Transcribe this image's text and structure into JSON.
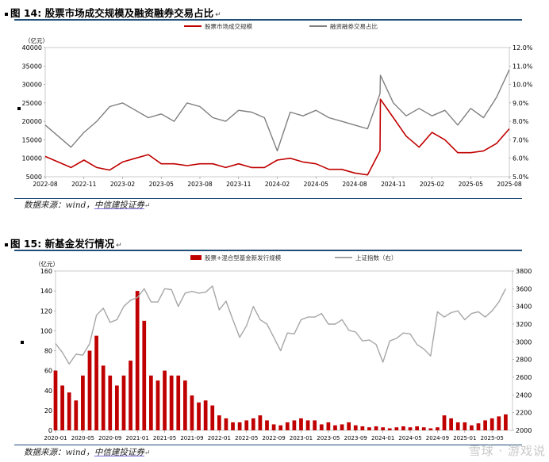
{
  "fig1": {
    "caption": "图 14: 股票市场成交规模及融资融券交易占比",
    "source_prefix": "数据来源：wind，",
    "source_link": "中信建投证券"
  },
  "fig2": {
    "caption": "图 15: 新基金发行情况",
    "source_prefix": "数据来源：wind，",
    "source_link": "中信建投证券"
  },
  "watermark": "雪球 · 游戏说",
  "colors": {
    "red": "#c00000",
    "gray": "#7f7f7f",
    "rule": "#1f4e79"
  },
  "chart_data": [
    {
      "type": "line",
      "y_unit_label": "（亿元）",
      "ylim": [
        5000,
        40000
      ],
      "y2lim": [
        0.05,
        0.12
      ],
      "y_ticks": [
        "40000",
        "35000",
        "30000",
        "25000",
        "20000",
        "15000",
        "10000",
        "5000"
      ],
      "y2_ticks": [
        "12.0%",
        "11.0%",
        "10.0%",
        "9.0%",
        "8.0%",
        "7.0%",
        "6.0%",
        "5.0%"
      ],
      "x_ticks": [
        "2022-08",
        "2022-11",
        "2023-02",
        "2023-05",
        "2023-08",
        "2023-11",
        "2024-02",
        "2024-05",
        "2024-08",
        "2024-11",
        "2025-02",
        "2025-05",
        "2025-08"
      ],
      "legend": [
        "股票市场成交规模",
        "融资融券交易占比"
      ],
      "series": [
        {
          "name": "股票市场成交规模",
          "axis": "left",
          "color": "#c00000",
          "x": [
            "2022-08",
            "2022-09",
            "2022-10",
            "2022-11",
            "2022-12",
            "2023-01",
            "2023-02",
            "2023-03",
            "2023-04",
            "2023-05",
            "2023-06",
            "2023-07",
            "2023-08",
            "2023-09",
            "2023-10",
            "2023-11",
            "2023-12",
            "2024-01",
            "2024-02",
            "2024-03",
            "2024-04",
            "2024-05",
            "2024-06",
            "2024-07",
            "2024-08",
            "2024-09",
            "2024-09-30",
            "2024-10",
            "2024-11",
            "2024-12",
            "2025-01",
            "2025-02",
            "2025-03",
            "2025-04",
            "2025-05",
            "2025-06",
            "2025-07",
            "2025-08"
          ],
          "values": [
            10500,
            9000,
            7500,
            9500,
            7500,
            6800,
            9000,
            10000,
            11000,
            8500,
            8500,
            8000,
            8500,
            8500,
            7500,
            8500,
            7500,
            7500,
            9500,
            10000,
            9000,
            8500,
            7000,
            7000,
            6000,
            5500,
            12000,
            26000,
            21000,
            16000,
            13000,
            17000,
            15000,
            11500,
            11500,
            12000,
            14000,
            18000
          ]
        },
        {
          "name": "融资融券交易占比",
          "axis": "right",
          "color": "#7f7f7f",
          "x": [
            "2022-08",
            "2022-09",
            "2022-10",
            "2022-11",
            "2022-12",
            "2023-01",
            "2023-02",
            "2023-03",
            "2023-04",
            "2023-05",
            "2023-06",
            "2023-07",
            "2023-08",
            "2023-09",
            "2023-10",
            "2023-11",
            "2023-12",
            "2024-01",
            "2024-02",
            "2024-03",
            "2024-04",
            "2024-05",
            "2024-06",
            "2024-07",
            "2024-08",
            "2024-09",
            "2024-09-30",
            "2024-10",
            "2024-11",
            "2024-12",
            "2025-01",
            "2025-02",
            "2025-03",
            "2025-04",
            "2025-05",
            "2025-06",
            "2025-07",
            "2025-08"
          ],
          "values": [
            0.078,
            0.072,
            0.066,
            0.074,
            0.08,
            0.088,
            0.09,
            0.086,
            0.082,
            0.084,
            0.08,
            0.09,
            0.088,
            0.082,
            0.08,
            0.086,
            0.085,
            0.082,
            0.064,
            0.085,
            0.083,
            0.086,
            0.082,
            0.08,
            0.078,
            0.076,
            0.095,
            0.105,
            0.09,
            0.083,
            0.087,
            0.083,
            0.086,
            0.078,
            0.087,
            0.082,
            0.093,
            0.108
          ]
        }
      ]
    },
    {
      "type": "bar",
      "y_unit_label": "（亿元）",
      "ylim": [
        0,
        160
      ],
      "y2lim": [
        2000,
        3800
      ],
      "y_ticks": [
        "160",
        "140",
        "120",
        "100",
        "80",
        "60",
        "40",
        "20",
        "0"
      ],
      "y2_ticks": [
        "3800",
        "3600",
        "3400",
        "3200",
        "3000",
        "2800",
        "2600",
        "2400",
        "2200",
        "2000"
      ],
      "x_ticks": [
        "2020-01",
        "2020-05",
        "2020-09",
        "2021-01",
        "2021-05",
        "2021-09",
        "2022-01",
        "2022-05",
        "2022-09",
        "2023-01",
        "2023-05",
        "2023-09",
        "2024-01",
        "2024-05",
        "2024-09",
        "2025-01",
        "2025-05"
      ],
      "legend": [
        "股票+混合型基金新发行规模",
        "上证指数（右）"
      ],
      "series": [
        {
          "name": "股票+混合型基金新发行规模",
          "axis": "left",
          "color": "#c00000",
          "x": [
            "2020-01",
            "2020-02",
            "2020-03",
            "2020-04",
            "2020-05",
            "2020-06",
            "2020-07",
            "2020-08",
            "2020-09",
            "2020-10",
            "2020-11",
            "2020-12",
            "2021-01",
            "2021-02",
            "2021-03",
            "2021-04",
            "2021-05",
            "2021-06",
            "2021-07",
            "2021-08",
            "2021-09",
            "2021-10",
            "2021-11",
            "2021-12",
            "2022-01",
            "2022-02",
            "2022-03",
            "2022-04",
            "2022-05",
            "2022-06",
            "2022-07",
            "2022-08",
            "2022-09",
            "2022-10",
            "2022-11",
            "2022-12",
            "2023-01",
            "2023-02",
            "2023-03",
            "2023-04",
            "2023-05",
            "2023-06",
            "2023-07",
            "2023-08",
            "2023-09",
            "2023-10",
            "2023-11",
            "2023-12",
            "2024-01",
            "2024-02",
            "2024-03",
            "2024-04",
            "2024-05",
            "2024-06",
            "2024-07",
            "2024-08",
            "2024-09",
            "2024-10",
            "2024-11",
            "2024-12",
            "2025-01",
            "2025-02",
            "2025-03",
            "2025-04",
            "2025-05",
            "2025-06",
            "2025-07"
          ],
          "values": [
            60,
            45,
            38,
            30,
            55,
            80,
            95,
            65,
            55,
            45,
            55,
            70,
            140,
            110,
            55,
            50,
            60,
            55,
            55,
            50,
            35,
            28,
            30,
            25,
            15,
            12,
            8,
            8,
            10,
            12,
            15,
            10,
            6,
            5,
            8,
            10,
            12,
            10,
            10,
            6,
            8,
            5,
            6,
            8,
            5,
            4,
            3,
            4,
            3,
            2,
            3,
            4,
            3,
            4,
            3,
            2,
            3,
            15,
            12,
            8,
            8,
            5,
            7,
            10,
            12,
            14,
            16
          ]
        },
        {
          "name": "上证指数（右）",
          "axis": "right",
          "color": "#a6a6a6",
          "x": [
            "2020-01",
            "2020-02",
            "2020-03",
            "2020-04",
            "2020-05",
            "2020-06",
            "2020-07",
            "2020-08",
            "2020-09",
            "2020-10",
            "2020-11",
            "2020-12",
            "2021-01",
            "2021-02",
            "2021-03",
            "2021-04",
            "2021-05",
            "2021-06",
            "2021-07",
            "2021-08",
            "2021-09",
            "2021-10",
            "2021-11",
            "2021-12",
            "2022-01",
            "2022-02",
            "2022-03",
            "2022-04",
            "2022-05",
            "2022-06",
            "2022-07",
            "2022-08",
            "2022-09",
            "2022-10",
            "2022-11",
            "2022-12",
            "2023-01",
            "2023-02",
            "2023-03",
            "2023-04",
            "2023-05",
            "2023-06",
            "2023-07",
            "2023-08",
            "2023-09",
            "2023-10",
            "2023-11",
            "2023-12",
            "2024-01",
            "2024-02",
            "2024-03",
            "2024-04",
            "2024-05",
            "2024-06",
            "2024-07",
            "2024-08",
            "2024-09",
            "2024-10",
            "2024-11",
            "2024-12",
            "2025-01",
            "2025-02",
            "2025-03",
            "2025-04",
            "2025-05",
            "2025-06",
            "2025-07"
          ],
          "values": [
            2980,
            2880,
            2750,
            2860,
            2850,
            2980,
            3300,
            3380,
            3220,
            3250,
            3400,
            3470,
            3500,
            3600,
            3450,
            3450,
            3600,
            3590,
            3400,
            3550,
            3570,
            3550,
            3560,
            3630,
            3360,
            3460,
            3250,
            3050,
            3180,
            3400,
            3250,
            3200,
            3050,
            2900,
            3100,
            3090,
            3250,
            3280,
            3280,
            3320,
            3200,
            3200,
            3250,
            3130,
            3110,
            3010,
            3020,
            2970,
            2770,
            3010,
            3040,
            3100,
            3090,
            2970,
            2920,
            2840,
            3340,
            3280,
            3330,
            3350,
            3250,
            3320,
            3340,
            3280,
            3350,
            3450,
            3600
          ]
        }
      ]
    }
  ]
}
